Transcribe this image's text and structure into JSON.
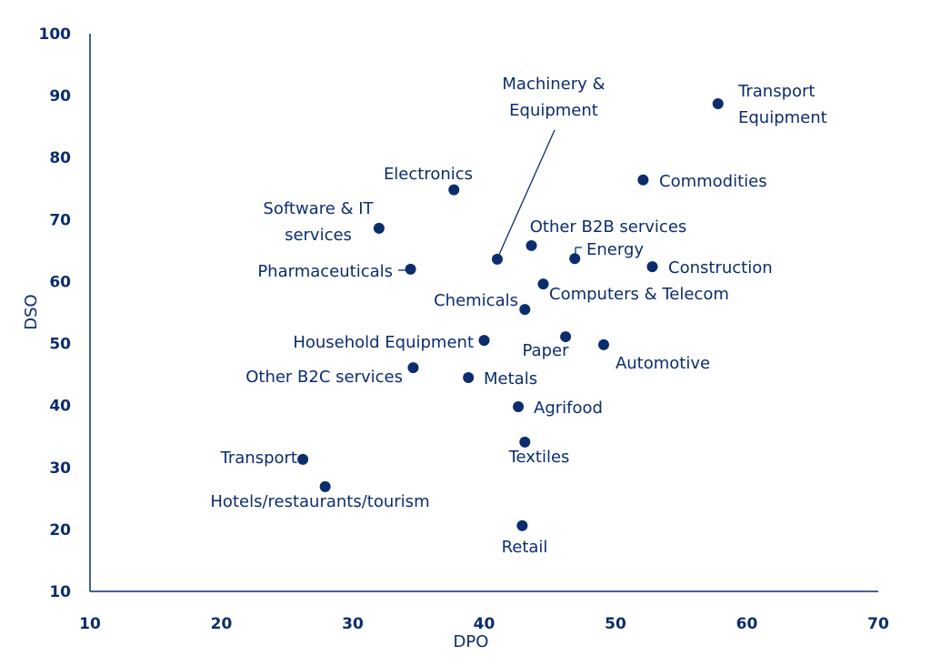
{
  "chart_data": {
    "type": "scatter",
    "title": "",
    "xlabel": "DPO",
    "ylabel": "DSO",
    "xlim": [
      10,
      70
    ],
    "ylim": [
      10,
      100
    ],
    "xticks": [
      "10",
      "20",
      "30",
      "40",
      "50",
      "60",
      "70"
    ],
    "yticks": [
      "10",
      "20",
      "30",
      "40",
      "50",
      "60",
      "70",
      "80",
      "90",
      "100"
    ],
    "grid": false,
    "color": "#0b2d6e",
    "points": [
      {
        "label": [
          "Transport",
          "Equipment"
        ],
        "x": 57.8,
        "y": 88.7
      },
      {
        "label": [
          "Commodities"
        ],
        "x": 52.1,
        "y": 76.4
      },
      {
        "label": [
          "Electronics"
        ],
        "x": 37.7,
        "y": 74.8
      },
      {
        "label": [
          "Software & IT",
          "services"
        ],
        "x": 32.0,
        "y": 68.6
      },
      {
        "label": [
          "Pharmaceuticals"
        ],
        "x": 34.4,
        "y": 62.0
      },
      {
        "label": [
          "Machinery &",
          "Equipment"
        ],
        "x": 41.0,
        "y": 63.6
      },
      {
        "label": [
          "Other B2B services"
        ],
        "x": 43.6,
        "y": 65.8
      },
      {
        "label": [
          "Energy"
        ],
        "x": 46.9,
        "y": 63.7
      },
      {
        "label": [
          "Construction"
        ],
        "x": 52.8,
        "y": 62.4
      },
      {
        "label": [
          "Computers & Telecom"
        ],
        "x": 44.5,
        "y": 59.6
      },
      {
        "label": [
          "Chemicals"
        ],
        "x": 43.1,
        "y": 55.5
      },
      {
        "label": [
          "Household Equipment"
        ],
        "x": 40.0,
        "y": 50.5
      },
      {
        "label": [
          "Paper"
        ],
        "x": 46.2,
        "y": 51.1
      },
      {
        "label": [
          "Automotive"
        ],
        "x": 49.1,
        "y": 49.8
      },
      {
        "label": [
          "Other B2C services"
        ],
        "x": 34.6,
        "y": 46.1
      },
      {
        "label": [
          "Metals"
        ],
        "x": 38.8,
        "y": 44.5
      },
      {
        "label": [
          "Agrifood"
        ],
        "x": 42.6,
        "y": 39.8
      },
      {
        "label": [
          "Textiles"
        ],
        "x": 43.1,
        "y": 34.1
      },
      {
        "label": [
          "Transport"
        ],
        "x": 26.2,
        "y": 31.3
      },
      {
        "label": [
          "Hotels/restaurants/tourism"
        ],
        "x": 27.9,
        "y": 26.9
      },
      {
        "label": [
          "Retail"
        ],
        "x": 42.9,
        "y": 20.6
      }
    ]
  }
}
